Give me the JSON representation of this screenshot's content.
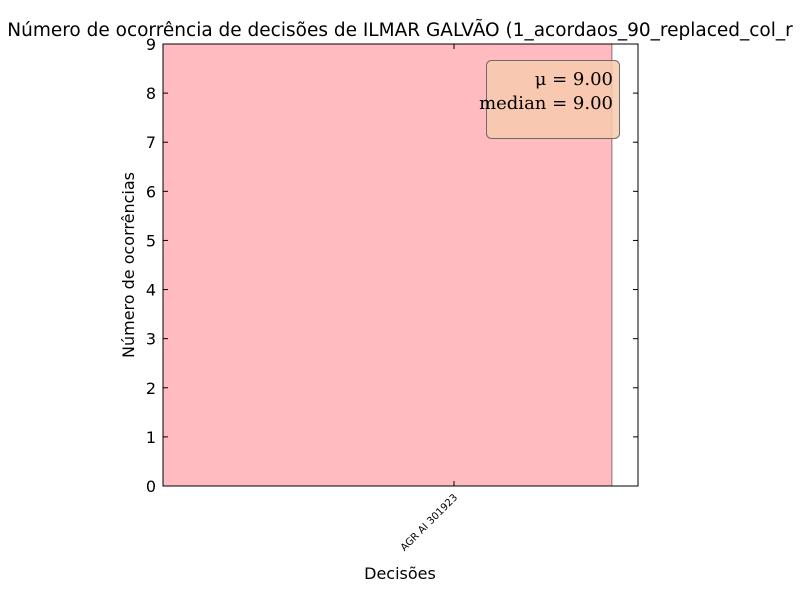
{
  "chart_data": {
    "type": "bar",
    "title": "Número de ocorrência de decisões de ILMAR GALVÃO (1_acordaos_90_replaced_col_r",
    "xlabel": "Decisões",
    "ylabel": "Número de ocorrências",
    "categories": [
      "AGR AI 301923"
    ],
    "values": [
      9
    ],
    "ylim": [
      0,
      9
    ],
    "yticks": [
      "0",
      "1",
      "2",
      "3",
      "4",
      "5",
      "6",
      "7",
      "8",
      "9"
    ],
    "bar_color": "#ffbbc0",
    "grid": false,
    "stats_box": {
      "mu_label": "μ = 9.00",
      "median_label": "median = 9.00",
      "placement": "top-right",
      "color": "#f7caad"
    }
  }
}
